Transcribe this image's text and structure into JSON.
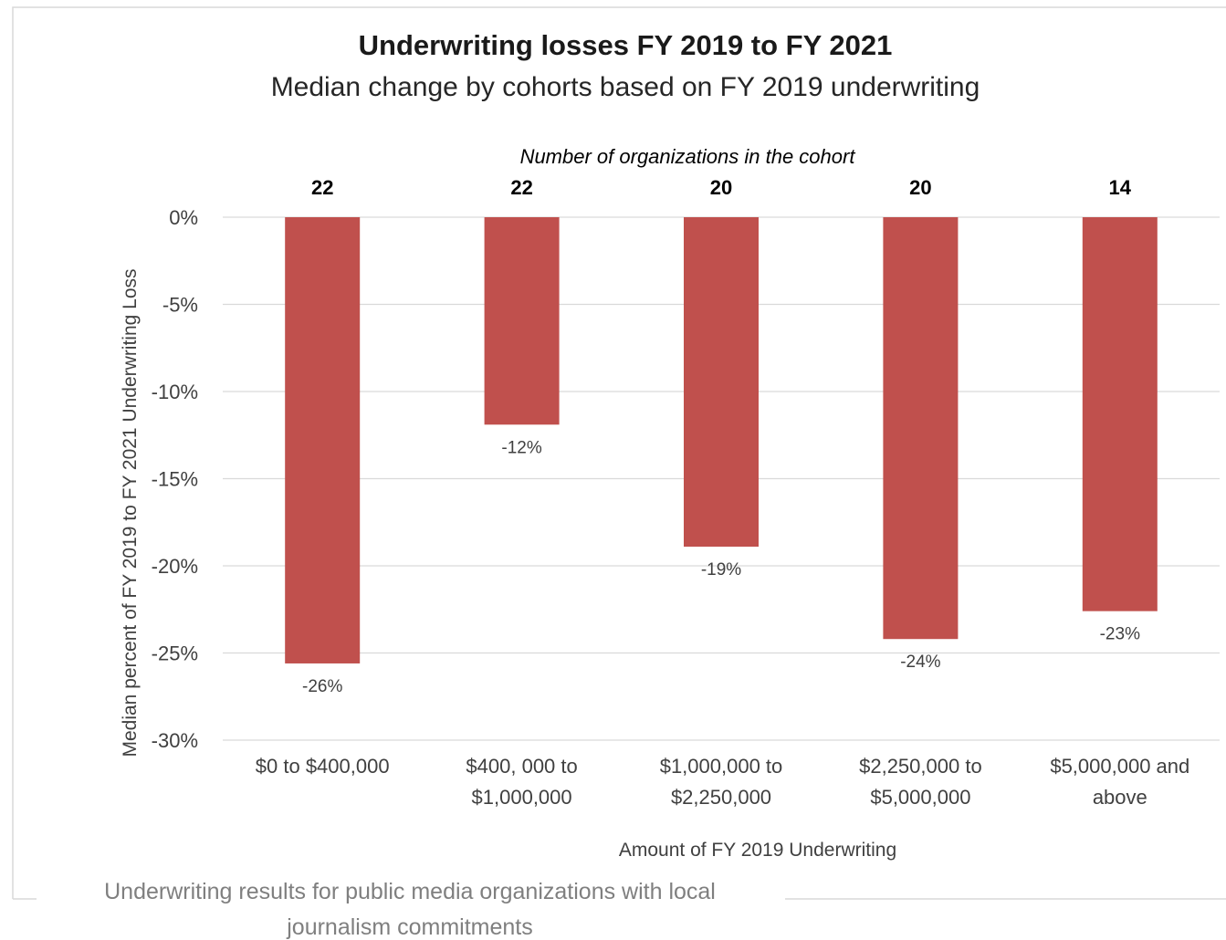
{
  "chart_data": {
    "type": "bar",
    "title": "Underwriting losses FY 2019 to FY 2021",
    "subtitle": "Median change by cohorts based on FY 2019 underwriting",
    "annotation": "Number of organizations in the cohort",
    "categories": [
      [
        "$0 to $400,000"
      ],
      [
        "$400, 000 to",
        "$1,000,000"
      ],
      [
        "$1,000,000 to",
        "$2,250,000"
      ],
      [
        "$2,250,000 to",
        "$5,000,000"
      ],
      [
        "$5,000,000 and",
        "above"
      ]
    ],
    "values": [
      -0.256,
      -0.119,
      -0.189,
      -0.242,
      -0.226
    ],
    "data_labels": [
      "-26%",
      "-12%",
      "-19%",
      "-24%",
      "-23%"
    ],
    "counts": [
      "22",
      "22",
      "20",
      "20",
      "14"
    ],
    "xlabel": "Amount of FY 2019 Underwriting",
    "ylabel": "Median percent of FY 2019 to FY 2021 Underwriting Loss",
    "ylim": [
      -0.3,
      0
    ],
    "yticks": [
      0,
      -0.05,
      -0.1,
      -0.15,
      -0.2,
      -0.25,
      -0.3
    ],
    "ytick_labels": [
      "0%",
      "-5%",
      "-10%",
      "-15%",
      "-20%",
      "-25%",
      "-30%"
    ],
    "grid": true,
    "legend": "none",
    "bar_color": "#c0504d",
    "gridline_color": "#d9d9d9"
  },
  "caption": [
    "Underwriting results for public media organizations with local",
    "journalism commitments"
  ]
}
